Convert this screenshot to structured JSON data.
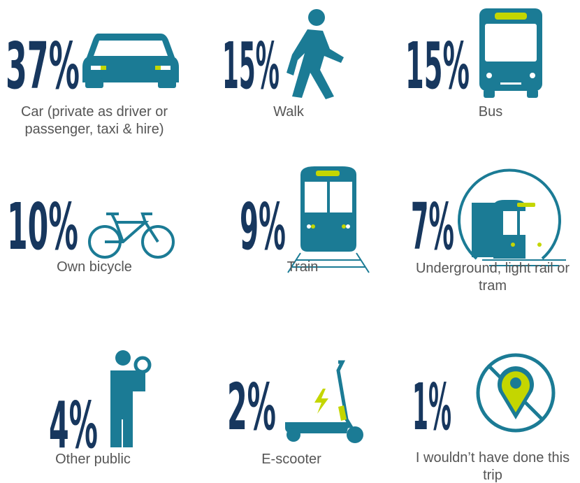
{
  "items": [
    {
      "value": "37%",
      "label": "Car (private as driver or passenger, taxi & hire)"
    },
    {
      "value": "15%",
      "label": "Walk"
    },
    {
      "value": "15%",
      "label": "Bus"
    },
    {
      "value": "10%",
      "label": "Own bicycle"
    },
    {
      "value": "9%",
      "label": "Train"
    },
    {
      "value": "7%",
      "label": "Underground, light rail or tram"
    },
    {
      "value": "4%",
      "label": "Other public"
    },
    {
      "value": "2%",
      "label": "E-scooter"
    },
    {
      "value": "1%",
      "label": "I wouldn’t have done this trip"
    }
  ]
}
